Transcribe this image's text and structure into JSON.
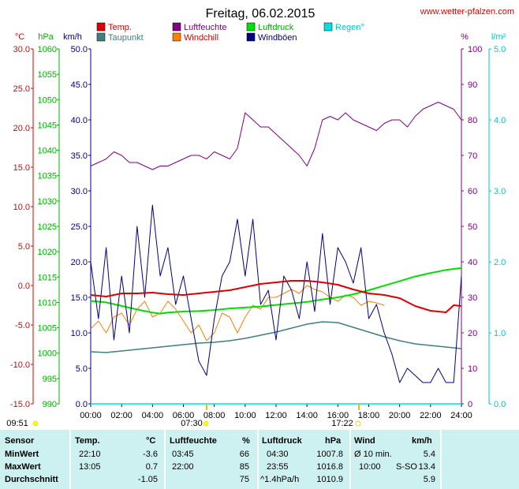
{
  "header": {
    "title": "Freitag, 06.02.2015",
    "site": "www.wetter-pfalzen.com"
  },
  "legend": [
    {
      "label": "Temp.",
      "color": "#e00000"
    },
    {
      "label": "Taupunkt",
      "color": "#3f7f7f"
    },
    {
      "label": "Luftfeuchte",
      "color": "#800080"
    },
    {
      "label": "Windchill",
      "color": "#ff8000"
    },
    {
      "label": "Luftdruck",
      "color": "#00e000"
    },
    {
      "label": "Windböen",
      "color": "#000080"
    },
    {
      "label": "Regen°",
      "color": "#00e0e0"
    }
  ],
  "axes": {
    "celsius": {
      "unit": "°C",
      "ticks": [
        "30.0",
        "25.0",
        "20.0",
        "15.0",
        "10.0",
        "5.0",
        "0.0",
        "-5.0",
        "-10.0",
        "-15.0"
      ],
      "color": "#e00000"
    },
    "hpa": {
      "unit": "hPa",
      "ticks": [
        "1060",
        "1055",
        "1050",
        "1045",
        "1040",
        "1035",
        "1030",
        "1025",
        "1020",
        "1015",
        "1010",
        "1005",
        "1000",
        "995",
        "990"
      ],
      "color": "#00b000"
    },
    "kmh": {
      "unit": "km/h",
      "ticks": [
        "50.0",
        "45.0",
        "40.0",
        "35.0",
        "30.0",
        "25.0",
        "20.0",
        "15.0",
        "10.0",
        "5.0",
        "0.0"
      ],
      "color": "#000080"
    },
    "percent": {
      "unit": "%",
      "ticks": [
        "100",
        "90",
        "80",
        "70",
        "60",
        "50",
        "40",
        "30",
        "20",
        "10",
        "0"
      ],
      "color": "#800080"
    },
    "rain": {
      "unit": "l/m²",
      "ticks": [
        "5.0",
        "4.0",
        "3.0",
        "2.0",
        "1.0",
        "0.0"
      ],
      "color": "#00c8c8"
    },
    "time": [
      "00:00",
      "02:00",
      "04:00",
      "06:00",
      "08:00",
      "10:00",
      "12:00",
      "14:00",
      "16:00",
      "18:00",
      "20:00",
      "22:00",
      "24:00"
    ]
  },
  "sun": {
    "left_time": "09:51",
    "sunrise": "07:30",
    "sunset": "17:22"
  },
  "stats": {
    "headers": {
      "sensor": "Sensor",
      "temp": "Temp.",
      "temp_unit": "°C",
      "humidity": "Luftfeuchte",
      "humidity_unit": "%",
      "pressure": "Luftdruck",
      "pressure_unit": "hPa",
      "wind": "Wind",
      "wind_unit": "km/h"
    },
    "rows": [
      {
        "label": "MinWert",
        "temp_time": "22:10",
        "temp": "-3.6",
        "hum_time": "03:45",
        "hum": "66",
        "press_time": "04:30",
        "press": "1007.8",
        "wind_time": "Ø 10 min.",
        "wind_dir": "",
        "wind": "5.4"
      },
      {
        "label": "MaxWert",
        "temp_time": "13:05",
        "temp": "0.7",
        "hum_time": "22:00",
        "hum": "85",
        "press_time": "23:55",
        "press": "1016.8",
        "wind_time": "10:00",
        "wind_dir": "S-SO",
        "wind": "13.4"
      },
      {
        "label": "Durchschnitt",
        "temp_time": "",
        "temp": "-1.05",
        "hum_time": "",
        "hum": "75",
        "press_time": "^1.4hPa/h",
        "press": "1010.9",
        "wind_time": "",
        "wind_dir": "",
        "wind": "5.9"
      }
    ]
  },
  "chart_data": {
    "type": "line",
    "title": "Freitag, 06.02.2015",
    "x_unit": "hours",
    "xlim": [
      0,
      24
    ],
    "x_tick_labels": [
      "00:00",
      "02:00",
      "04:00",
      "06:00",
      "08:00",
      "10:00",
      "12:00",
      "14:00",
      "16:00",
      "18:00",
      "20:00",
      "22:00",
      "24:00"
    ],
    "axes": {
      "celsius": {
        "label": "°C",
        "ylim": [
          -15,
          30
        ]
      },
      "hpa": {
        "label": "hPa",
        "ylim": [
          990,
          1060
        ]
      },
      "kmh": {
        "label": "km/h",
        "ylim": [
          0,
          50
        ]
      },
      "percent": {
        "label": "%",
        "ylim": [
          0,
          100
        ]
      },
      "rain": {
        "label": "l/m²",
        "ylim": [
          0,
          5
        ]
      }
    },
    "grid": false,
    "series": [
      {
        "name": "Temp.",
        "axis": "celsius",
        "color": "#e00000",
        "x": [
          0,
          1,
          2,
          3,
          4,
          5,
          6,
          7,
          8,
          9,
          10,
          11,
          12,
          13,
          14,
          15,
          16,
          17,
          18,
          19,
          20,
          21,
          22,
          23,
          23.5,
          24
        ],
        "y": [
          -1.2,
          -1.4,
          -1.0,
          -1.0,
          -0.9,
          -1.1,
          -1.2,
          -1.0,
          -0.8,
          -0.6,
          -0.2,
          0.2,
          0.4,
          0.6,
          0.6,
          0.4,
          0.1,
          -0.5,
          -1.0,
          -1.2,
          -1.6,
          -2.6,
          -3.2,
          -3.4,
          -2.5,
          -2.6
        ]
      },
      {
        "name": "Taupunkt",
        "axis": "celsius",
        "color": "#3f7f7f",
        "x": [
          0,
          1,
          2,
          3,
          4,
          5,
          6,
          7,
          8,
          9,
          10,
          11,
          12,
          13,
          14,
          15,
          16,
          17,
          18,
          19,
          20,
          21,
          22,
          23,
          24
        ],
        "y": [
          -8.4,
          -8.5,
          -8.3,
          -8.1,
          -7.9,
          -7.7,
          -7.5,
          -7.3,
          -7.2,
          -7.0,
          -6.7,
          -6.3,
          -5.9,
          -5.4,
          -4.9,
          -4.6,
          -4.7,
          -5.3,
          -5.9,
          -6.5,
          -7.0,
          -7.4,
          -7.6,
          -7.8,
          -8.0
        ]
      },
      {
        "name": "Luftfeuchte",
        "axis": "percent",
        "color": "#800080",
        "x": [
          0,
          0.5,
          1,
          1.5,
          2,
          2.5,
          3,
          3.5,
          4,
          4.5,
          5,
          5.5,
          6,
          6.5,
          7,
          7.5,
          8,
          8.5,
          9,
          9.5,
          10,
          10.5,
          11,
          11.5,
          12,
          12.5,
          13,
          13.5,
          14,
          14.5,
          15,
          15.5,
          16,
          16.5,
          17,
          17.5,
          18,
          18.5,
          19,
          19.5,
          20,
          20.5,
          21,
          21.5,
          22,
          22.5,
          23,
          23.5,
          24
        ],
        "y": [
          67,
          68,
          69,
          71,
          70,
          68,
          68,
          67,
          66,
          67,
          67,
          68,
          69,
          70,
          70,
          69,
          71,
          70,
          69,
          72,
          82,
          80,
          78,
          78,
          76,
          74,
          72,
          70,
          67,
          72,
          80,
          81,
          80,
          82,
          80,
          79,
          78,
          77,
          79,
          80,
          80,
          78,
          81,
          83,
          84,
          85,
          84,
          83,
          80
        ]
      },
      {
        "name": "Windchill",
        "axis": "celsius",
        "color": "#ff8000",
        "x": [
          0,
          0.5,
          1,
          1.5,
          2,
          2.5,
          3,
          3.5,
          4,
          4.5,
          5,
          5.5,
          6,
          6.5,
          7,
          7.5,
          8,
          8.5,
          9,
          9.5,
          10,
          10.5,
          11,
          11.5,
          12,
          12.5,
          13,
          13.5,
          14,
          14.5,
          15,
          15.5,
          16,
          16.5,
          17,
          17.5,
          18,
          18.5,
          19
        ],
        "y": [
          -5.5,
          -4.5,
          -6,
          -4,
          -3.5,
          -5,
          -3,
          -2,
          -4,
          -3.5,
          -2,
          -3,
          -4.5,
          -6,
          -5,
          -7,
          -6,
          -3.5,
          -4,
          -6,
          -4,
          -2.5,
          -3,
          -1.5,
          -1.5,
          -1,
          -0.5,
          -1,
          0,
          -0.5,
          -0.8,
          -1.5,
          -2,
          -1.2,
          -1.5,
          -2.5,
          -2,
          -2.2,
          -2.5
        ]
      },
      {
        "name": "Luftdruck",
        "axis": "hpa",
        "color": "#00e000",
        "x": [
          0,
          1,
          2,
          3,
          4,
          4.5,
          5,
          6,
          7,
          8,
          9,
          10,
          11,
          12,
          13,
          14,
          15,
          16,
          17,
          18,
          19,
          20,
          21,
          22,
          23,
          24
        ],
        "y": [
          1010.3,
          1010.0,
          1009.3,
          1008.6,
          1008.0,
          1007.8,
          1008.0,
          1008.2,
          1008.3,
          1008.5,
          1008.8,
          1009.0,
          1009.2,
          1009.5,
          1009.8,
          1010.1,
          1010.6,
          1011.0,
          1011.6,
          1012.4,
          1013.3,
          1014.2,
          1015.1,
          1015.8,
          1016.4,
          1016.8
        ]
      },
      {
        "name": "Windböen",
        "axis": "kmh",
        "color": "#000080",
        "x": [
          0,
          0.5,
          1,
          1.5,
          2,
          2.5,
          3,
          3.5,
          4,
          4.5,
          5,
          5.5,
          6,
          6.5,
          7,
          7.5,
          8,
          8.5,
          9,
          9.5,
          10,
          10.5,
          11,
          11.5,
          12,
          12.5,
          13,
          13.5,
          14,
          14.5,
          15,
          15.5,
          16,
          16.5,
          17,
          17.5,
          18,
          18.5,
          19,
          19.5,
          20,
          20.5,
          21,
          21.5,
          22,
          22.5,
          23,
          23.5,
          24
        ],
        "y": [
          20,
          12,
          22,
          9,
          18,
          10,
          25,
          15,
          28,
          18,
          22,
          14,
          18,
          12,
          6,
          4,
          12,
          18,
          20,
          26,
          18,
          26,
          14,
          16,
          9,
          18,
          16,
          12,
          20,
          13,
          24,
          14,
          22,
          20,
          17,
          22,
          12,
          14,
          10,
          7,
          3,
          5,
          4,
          3,
          3,
          5,
          3,
          3,
          18
        ]
      },
      {
        "name": "Regen°",
        "axis": "rain",
        "color": "#00e0e0",
        "x": [
          0,
          24
        ],
        "y": [
          0,
          0
        ]
      }
    ]
  }
}
